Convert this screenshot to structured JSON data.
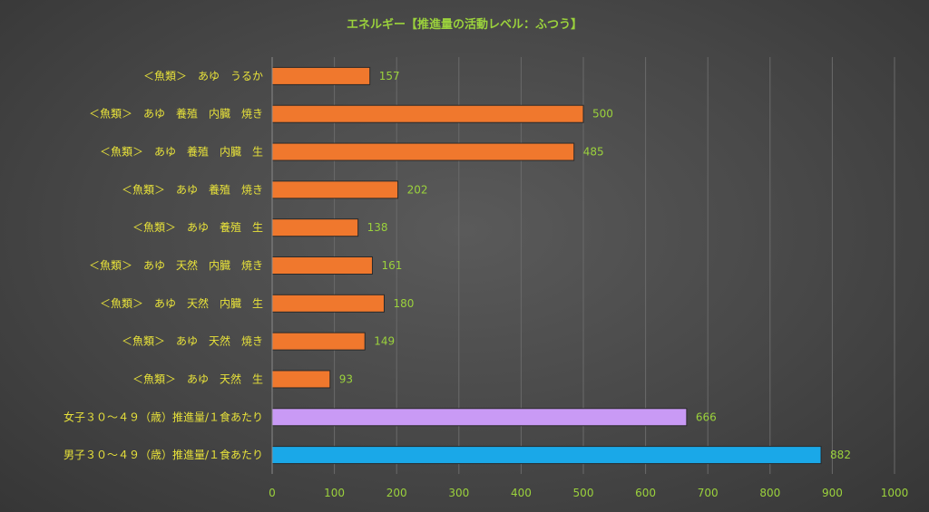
{
  "chart_data": {
    "type": "bar",
    "orientation": "horizontal",
    "title": "エネルギー【推進量の活動レベル：ふつう】",
    "categories": [
      "＜魚類＞　あゆ　うるか",
      "＜魚類＞　あゆ　養殖　内臓　焼き",
      "＜魚類＞　あゆ　養殖　内臓　生",
      "＜魚類＞　あゆ　養殖　焼き",
      "＜魚類＞　あゆ　養殖　生",
      "＜魚類＞　あゆ　天然　内臓　焼き",
      "＜魚類＞　あゆ　天然　内臓　生",
      "＜魚類＞　あゆ　天然　焼き",
      "＜魚類＞　あゆ　天然　生",
      "女子３０～４９（歳）推進量/１食あたり",
      "男子３０～４９（歳）推進量/１食あたり"
    ],
    "values": [
      157,
      500,
      485,
      202,
      138,
      161,
      180,
      149,
      93,
      666,
      882
    ],
    "value_labels": [
      "157",
      "500",
      "485",
      "202",
      "138",
      "161",
      "180",
      "149",
      "93",
      "666",
      "882"
    ],
    "bar_colors": [
      "#f0782d",
      "#f0782d",
      "#f0782d",
      "#f0782d",
      "#f0782d",
      "#f0782d",
      "#f0782d",
      "#f0782d",
      "#f0782d",
      "#c99af5",
      "#1aa8e8"
    ],
    "xlim": [
      0,
      1000
    ],
    "x_ticks": [
      0,
      100,
      200,
      300,
      400,
      500,
      600,
      700,
      800,
      900,
      1000
    ],
    "x_tick_labels": [
      "0",
      "100",
      "200",
      "300",
      "400",
      "500",
      "600",
      "700",
      "800",
      "900",
      "1000"
    ],
    "grid": true,
    "legend": "none",
    "colors": {
      "title": "#9bd23c",
      "category_labels": "#e8e23a",
      "tick_labels": "#9bd23c",
      "value_labels": "#9bd23c",
      "bar_outline": "#2a2a2a"
    }
  }
}
